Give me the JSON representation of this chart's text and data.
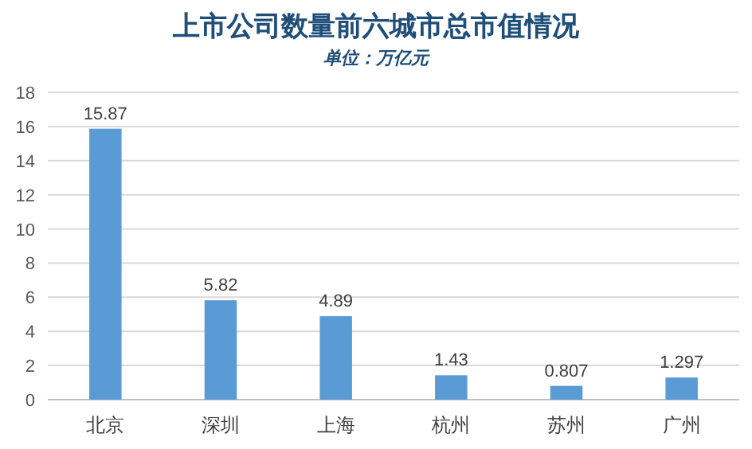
{
  "chart_data": {
    "type": "bar",
    "title": "上市公司数量前六城市总市值情况",
    "subtitle": "单位：万亿元",
    "categories": [
      "北京",
      "深圳",
      "上海",
      "杭州",
      "苏州",
      "广州"
    ],
    "values": [
      15.87,
      5.82,
      4.89,
      1.43,
      0.807,
      1.297
    ],
    "color": "#5b9bd5",
    "ylim": [
      0,
      18
    ],
    "yticks": [
      0,
      2,
      4,
      6,
      8,
      10,
      12,
      14,
      16,
      18
    ],
    "grid": "y",
    "data_labels": true
  }
}
